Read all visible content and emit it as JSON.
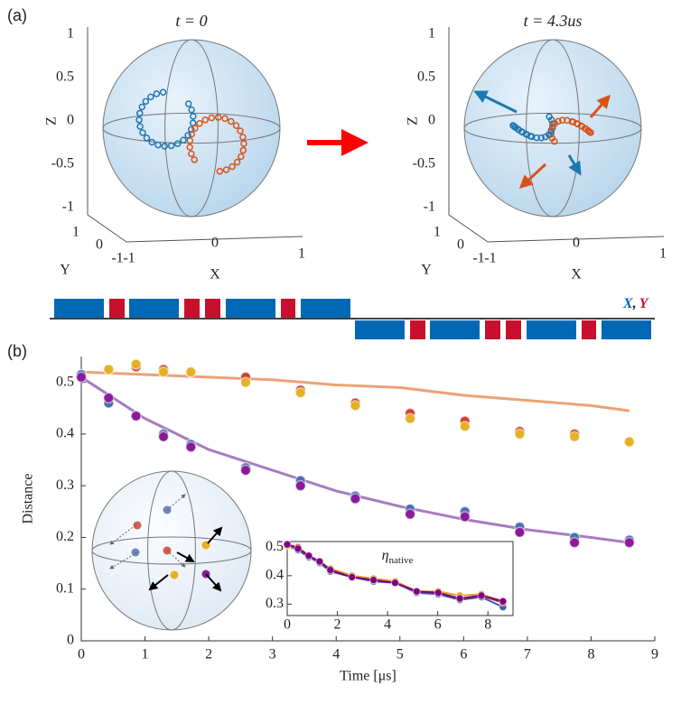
{
  "panel_labels": [
    "(a)",
    "(b)"
  ],
  "bloch_spheres": [
    {
      "title": "t = 0",
      "z_label": "Z",
      "y_label": "Y",
      "x_label": "X",
      "zticks": [
        "1",
        "0.5",
        "0",
        "-0.5",
        "-1"
      ],
      "yticks": [
        "1",
        "0",
        "-1"
      ],
      "xticks": [
        "-1",
        "0",
        "1"
      ]
    },
    {
      "title": "t = 4.3us",
      "z_label": "Z",
      "y_label": "Y",
      "x_label": "X",
      "zticks": [
        "1",
        "0.5",
        "0",
        "-0.5",
        "-1"
      ],
      "yticks": [
        "1",
        "0",
        "-1"
      ],
      "xticks": [
        "-1",
        "0",
        "1"
      ]
    }
  ],
  "pulse_legend": {
    "x": "X",
    "separator": ",",
    "y": "Y",
    "x_color": "#0068b5",
    "y_color": "#c8102e"
  },
  "chart_data": [
    {
      "type": "scatter",
      "x_label": "Time [μs]",
      "y_label": "Distance",
      "xlim": [
        0,
        9
      ],
      "ylim": [
        0,
        0.55
      ],
      "xticks": [
        0,
        1,
        2,
        3,
        4,
        5,
        6,
        7,
        8,
        9
      ],
      "yticks": [
        0,
        0.1,
        0.2,
        0.3,
        0.4,
        0.5
      ],
      "x": [
        0,
        0.43,
        0.86,
        1.29,
        1.72,
        2.58,
        3.44,
        4.3,
        5.16,
        6.02,
        6.88,
        7.74,
        8.6
      ],
      "series": [
        {
          "color": "#d0402e",
          "values": [
            0.515,
            0.525,
            0.53,
            0.525,
            0.52,
            0.51,
            0.485,
            0.46,
            0.44,
            0.425,
            0.405,
            0.4,
            0.385
          ]
        },
        {
          "color": "#e6b024",
          "values": [
            0.515,
            0.525,
            0.535,
            0.52,
            0.52,
            0.5,
            0.48,
            0.455,
            0.43,
            0.415,
            0.4,
            0.395,
            0.385
          ]
        },
        {
          "color": "#4a6fb0",
          "values": [
            0.515,
            0.46,
            0.435,
            0.4,
            0.38,
            0.335,
            0.31,
            0.28,
            0.255,
            0.25,
            0.22,
            0.2,
            0.195
          ]
        },
        {
          "color": "#8b1a9a",
          "values": [
            0.51,
            0.47,
            0.435,
            0.395,
            0.375,
            0.33,
            0.3,
            0.275,
            0.245,
            0.24,
            0.21,
            0.19,
            0.19
          ]
        }
      ],
      "lines": [
        {
          "color": "#eba276",
          "x": [
            0,
            1,
            2,
            3,
            4,
            5,
            6,
            7,
            8,
            8.6
          ],
          "values": [
            0.52,
            0.515,
            0.51,
            0.505,
            0.495,
            0.49,
            0.475,
            0.465,
            0.455,
            0.445
          ]
        },
        {
          "color": "#a57cc0",
          "x": [
            0,
            0.5,
            1,
            1.5,
            2,
            3,
            4,
            5,
            6,
            7,
            8,
            8.6
          ],
          "values": [
            0.51,
            0.47,
            0.43,
            0.4,
            0.37,
            0.33,
            0.29,
            0.26,
            0.235,
            0.215,
            0.2,
            0.19
          ]
        }
      ]
    },
    {
      "type": "line",
      "title_symbol": "η",
      "title_subscript": "native",
      "xlim": [
        0,
        9
      ],
      "ylim": [
        0.26,
        0.52
      ],
      "xticks": [
        0,
        2,
        4,
        6,
        8
      ],
      "yticks": [
        0.3,
        0.4,
        0.5
      ],
      "x": [
        0,
        0.43,
        0.86,
        1.29,
        1.72,
        2.58,
        3.44,
        4.3,
        5.16,
        6.02,
        6.88,
        7.74,
        8.6
      ],
      "series": [
        {
          "color": "#3b5ba5",
          "values": [
            0.505,
            0.49,
            0.465,
            0.445,
            0.415,
            0.395,
            0.38,
            0.375,
            0.34,
            0.335,
            0.315,
            0.325,
            0.29
          ]
        },
        {
          "color": "#c03030",
          "values": [
            0.51,
            0.5,
            0.47,
            0.45,
            0.42,
            0.4,
            0.385,
            0.38,
            0.345,
            0.34,
            0.32,
            0.33,
            0.305
          ]
        },
        {
          "color": "#e0a820",
          "values": [
            0.505,
            0.495,
            0.47,
            0.45,
            0.425,
            0.4,
            0.39,
            0.38,
            0.345,
            0.345,
            0.33,
            0.335,
            0.31
          ]
        },
        {
          "color": "#800080",
          "values": [
            0.51,
            0.495,
            0.47,
            0.45,
            0.42,
            0.395,
            0.385,
            0.375,
            0.345,
            0.34,
            0.32,
            0.33,
            0.31
          ]
        }
      ]
    }
  ]
}
